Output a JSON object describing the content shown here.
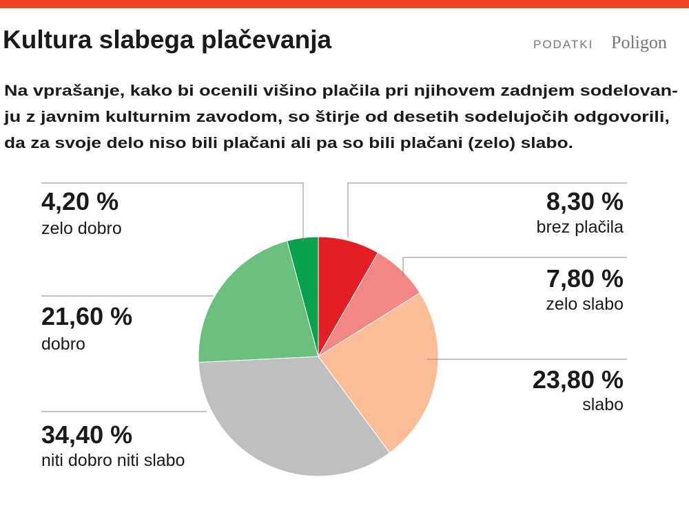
{
  "chart_data": {
    "type": "pie",
    "title": "Kultura slabega plačevanja",
    "source_label": "PODATKI",
    "source": "Poligon",
    "subtitle": [
      "Na vprašanje, kako bi ocenili višino plačila pri njihovem zadnjem sodelovan-",
      "ju z javnim kulturnim zavodom, so štirje od desetih sodelujočih odgovorili,",
      "da za svoje delo niso bili plačani ali pa so bili plačani (zelo) slabo."
    ],
    "categories": [
      "brez plačila",
      "zelo slabo",
      "slabo",
      "niti dobro niti slabo",
      "dobro",
      "zelo dobro"
    ],
    "values": [
      8.3,
      7.8,
      23.8,
      34.4,
      21.6,
      4.2
    ],
    "value_labels": [
      "8,30 %",
      "7,80 %",
      "23,80 %",
      "34,40 %",
      "21,60 %",
      "4,20 %"
    ],
    "colors": [
      "#e31e24",
      "#f28783",
      "#fbbe98",
      "#bebfc1",
      "#6cc07d",
      "#08a24f"
    ]
  }
}
